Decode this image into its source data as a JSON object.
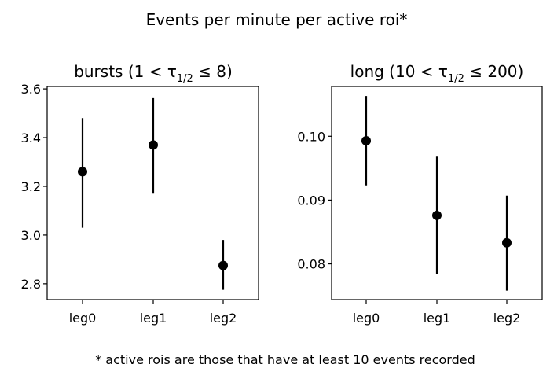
{
  "figure": {
    "suptitle": "Events per minute per active roi*",
    "footnote": "* active rois are those that have at least 10 events recorded"
  },
  "chart_data": [
    {
      "type": "scatter",
      "error_bars": true,
      "title_main": "bursts (1 < τ",
      "title_sub": "1/2",
      "title_rest": " ≤ 8)",
      "xlabel": "",
      "ylabel": "",
      "categories": [
        "leg0",
        "leg1",
        "leg2"
      ],
      "values": [
        3.26,
        3.37,
        2.875
      ],
      "err_low": [
        3.03,
        3.17,
        2.775
      ],
      "err_high": [
        3.48,
        3.565,
        2.98
      ],
      "yticks": [
        "2.8",
        "3.0",
        "3.2",
        "3.4",
        "3.6"
      ],
      "ytick_values": [
        2.8,
        3.0,
        3.2,
        3.4,
        3.6
      ],
      "ylim": [
        2.735,
        3.61
      ],
      "grid": false,
      "marker_color": "#000000"
    },
    {
      "type": "scatter",
      "error_bars": true,
      "title_main": "long (10 < τ",
      "title_sub": "1/2",
      "title_rest": " ≤ 200)",
      "xlabel": "",
      "ylabel": "",
      "categories": [
        "leg0",
        "leg1",
        "leg2"
      ],
      "values": [
        0.0993,
        0.0876,
        0.0833
      ],
      "err_low": [
        0.0923,
        0.0784,
        0.0758
      ],
      "err_high": [
        0.1063,
        0.0968,
        0.0907
      ],
      "yticks": [
        "0.08",
        "0.09",
        "0.10"
      ],
      "ytick_values": [
        0.08,
        0.09,
        0.1
      ],
      "ylim": [
        0.0744,
        0.1078
      ],
      "grid": false,
      "marker_color": "#000000"
    }
  ]
}
